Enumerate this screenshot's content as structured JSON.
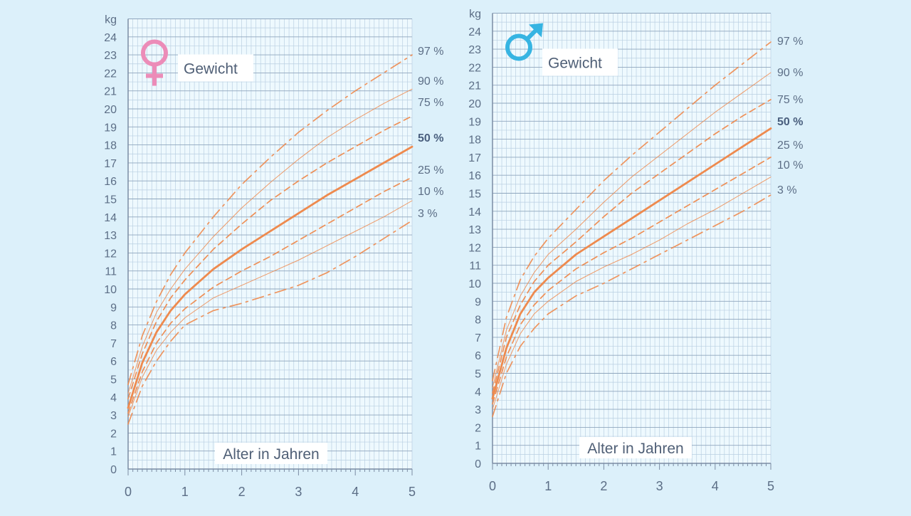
{
  "colors": {
    "background": "#dcf0fa",
    "plot_background": "#eef9fe",
    "grid_minor": "#b9cfe2",
    "grid_major": "#8fa6bd",
    "curve": "#ee8a4e",
    "female_symbol": "#ec8cb8",
    "male_symbol": "#36b4e2",
    "label_box": "#ffffff"
  },
  "chart_data": [
    {
      "type": "line",
      "title": "Gewicht",
      "symbol": "female-symbol-icon",
      "y_unit": "kg",
      "xlabel": "Alter in Jahren",
      "xlim": [
        0,
        5
      ],
      "ylim": [
        0,
        25
      ],
      "x_ticks": [
        "0",
        "1",
        "2",
        "3",
        "4",
        "5"
      ],
      "y_ticks": [
        "0",
        "1",
        "2",
        "3",
        "4",
        "5",
        "6",
        "7",
        "8",
        "9",
        "10",
        "11",
        "12",
        "13",
        "14",
        "15",
        "16",
        "17",
        "18",
        "19",
        "20",
        "21",
        "22",
        "23",
        "24"
      ],
      "grid": true,
      "x": [
        0,
        0.25,
        0.5,
        0.75,
        1,
        1.5,
        2,
        2.5,
        3,
        3.5,
        4,
        4.5,
        5
      ],
      "series": [
        {
          "name": "97 %",
          "line": "dashdot",
          "values": [
            4.7,
            7.4,
            9.3,
            10.8,
            12.0,
            14.0,
            15.8,
            17.3,
            18.7,
            19.9,
            21.0,
            22.0,
            23.0
          ]
        },
        {
          "name": "90 %",
          "line": "thin",
          "values": [
            4.2,
            6.8,
            8.7,
            10.0,
            11.1,
            12.9,
            14.5,
            15.9,
            17.2,
            18.4,
            19.4,
            20.3,
            21.1
          ]
        },
        {
          "name": "75 %",
          "line": "dashed",
          "values": [
            3.9,
            6.4,
            8.2,
            9.5,
            10.5,
            12.2,
            13.6,
            14.9,
            16.0,
            17.0,
            17.9,
            18.8,
            19.6
          ]
        },
        {
          "name": "50 %",
          "line": "bold",
          "values": [
            3.4,
            5.9,
            7.6,
            8.8,
            9.7,
            11.1,
            12.2,
            13.2,
            14.2,
            15.2,
            16.1,
            17.0,
            17.9
          ]
        },
        {
          "name": "25 %",
          "line": "dashed",
          "values": [
            3.1,
            5.4,
            7.0,
            8.1,
            8.9,
            10.1,
            11.0,
            11.8,
            12.7,
            13.6,
            14.5,
            15.4,
            16.2
          ]
        },
        {
          "name": "10 %",
          "line": "thin",
          "values": [
            2.9,
            5.1,
            6.6,
            7.6,
            8.4,
            9.5,
            10.2,
            10.9,
            11.6,
            12.4,
            13.2,
            14.0,
            14.9
          ]
        },
        {
          "name": "3 %",
          "line": "dashdot",
          "values": [
            2.5,
            4.6,
            6.0,
            7.1,
            8.0,
            8.8,
            9.2,
            9.7,
            10.2,
            10.9,
            11.8,
            12.8,
            13.8
          ]
        }
      ]
    },
    {
      "type": "line",
      "title": "Gewicht",
      "symbol": "male-symbol-icon",
      "y_unit": "kg",
      "xlabel": "Alter in Jahren",
      "xlim": [
        0,
        5
      ],
      "ylim": [
        0,
        25
      ],
      "x_ticks": [
        "0",
        "1",
        "2",
        "3",
        "4",
        "5"
      ],
      "y_ticks": [
        "0",
        "1",
        "2",
        "3",
        "4",
        "5",
        "6",
        "7",
        "8",
        "9",
        "10",
        "11",
        "12",
        "13",
        "14",
        "15",
        "16",
        "17",
        "18",
        "19",
        "20",
        "21",
        "22",
        "23",
        "24"
      ],
      "grid": true,
      "x": [
        0,
        0.25,
        0.5,
        0.75,
        1,
        1.5,
        2,
        2.5,
        3,
        3.5,
        4,
        4.5,
        5
      ],
      "series": [
        {
          "name": "97 %",
          "line": "dashdot",
          "values": [
            4.6,
            8.1,
            10.2,
            11.5,
            12.5,
            14.1,
            15.7,
            17.1,
            18.4,
            19.7,
            21.0,
            22.2,
            23.4
          ]
        },
        {
          "name": "90 %",
          "line": "thin",
          "values": [
            4.2,
            7.4,
            9.3,
            10.6,
            11.6,
            13.0,
            14.5,
            15.9,
            17.1,
            18.3,
            19.5,
            20.6,
            21.7
          ]
        },
        {
          "name": "75 %",
          "line": "dashed",
          "values": [
            3.9,
            7.0,
            8.8,
            10.1,
            11.0,
            12.3,
            13.7,
            15.0,
            16.1,
            17.2,
            18.3,
            19.3,
            20.2
          ]
        },
        {
          "name": "50 %",
          "line": "bold",
          "values": [
            3.6,
            6.4,
            8.3,
            9.5,
            10.3,
            11.6,
            12.6,
            13.6,
            14.6,
            15.6,
            16.6,
            17.6,
            18.6
          ]
        },
        {
          "name": "25 %",
          "line": "dashed",
          "values": [
            3.3,
            5.9,
            7.7,
            8.8,
            9.6,
            10.8,
            11.7,
            12.5,
            13.4,
            14.3,
            15.2,
            16.1,
            17.0
          ]
        },
        {
          "name": "10 %",
          "line": "thin",
          "values": [
            3.0,
            5.5,
            7.2,
            8.3,
            9.0,
            10.1,
            10.9,
            11.6,
            12.4,
            13.3,
            14.1,
            15.0,
            15.9
          ]
        },
        {
          "name": "3 %",
          "line": "dashdot",
          "values": [
            2.6,
            5.0,
            6.5,
            7.5,
            8.3,
            9.3,
            10.0,
            10.8,
            11.6,
            12.4,
            13.2,
            14.0,
            14.9
          ]
        }
      ]
    }
  ]
}
